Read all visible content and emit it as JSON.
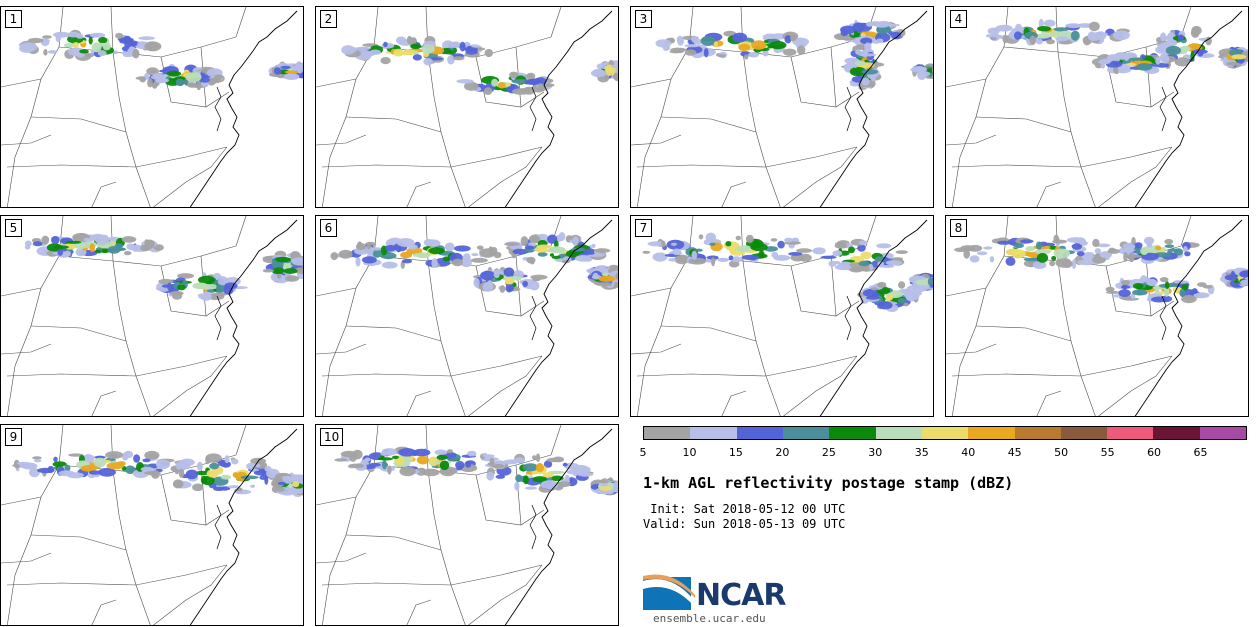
{
  "panels": [
    {
      "label": "1"
    },
    {
      "label": "2"
    },
    {
      "label": "3"
    },
    {
      "label": "4"
    },
    {
      "label": "5"
    },
    {
      "label": "6"
    },
    {
      "label": "7"
    },
    {
      "label": "8"
    },
    {
      "label": "9"
    },
    {
      "label": "10"
    }
  ],
  "colorbar": {
    "colors": [
      "#a3a3a3",
      "#b7bfe9",
      "#5464d8",
      "#4a8f9a",
      "#0a8a0a",
      "#b9ddbb",
      "#ecdc6c",
      "#e8a81f",
      "#b87930",
      "#8a5a3c",
      "#ee5a7c",
      "#6a1535",
      "#a64aa6"
    ],
    "ticks": [
      "5",
      "10",
      "15",
      "20",
      "25",
      "30",
      "35",
      "40",
      "45",
      "50",
      "55",
      "60",
      "65"
    ]
  },
  "title": "1-km AGL reflectivity postage stamp (dBZ)",
  "init": " Init: Sat 2018-05-12 00 UTC",
  "valid": "Valid: Sun 2018-05-13 09 UTC",
  "logo": {
    "text": "NCAR",
    "brand_color": "#1a3a6e",
    "swoosh_color": "#0f73b8"
  },
  "url": "ensemble.ucar.edu"
}
